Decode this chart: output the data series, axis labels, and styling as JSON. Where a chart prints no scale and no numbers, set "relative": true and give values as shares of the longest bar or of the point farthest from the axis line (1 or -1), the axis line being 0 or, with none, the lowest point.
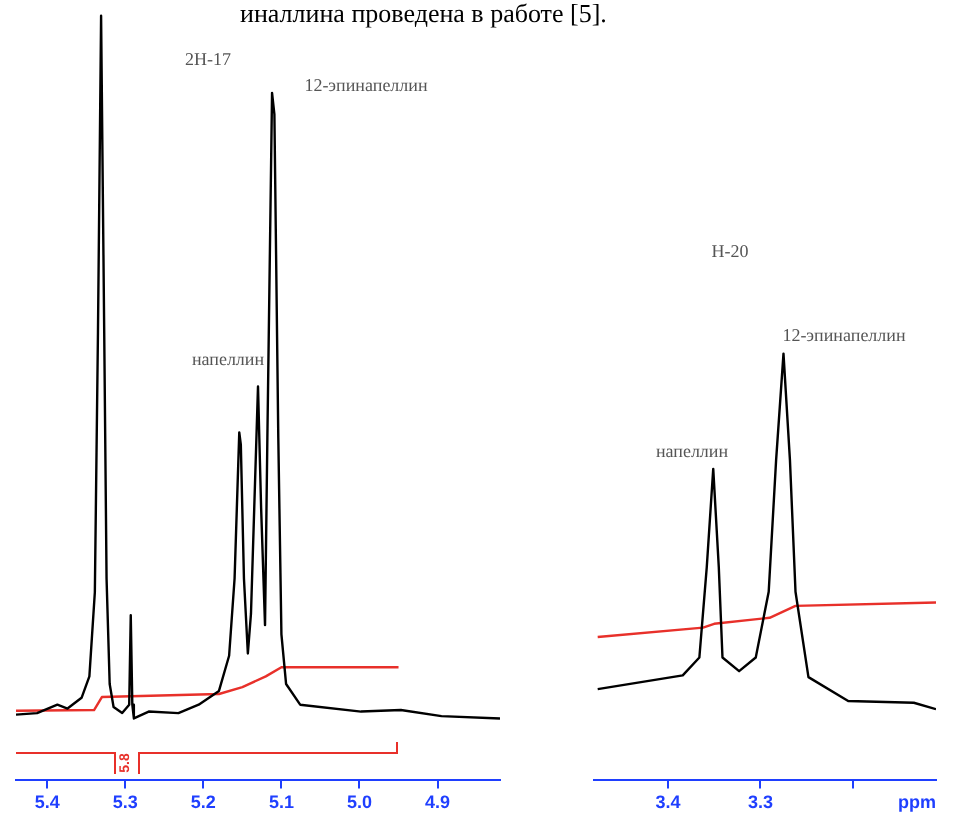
{
  "chart_data": [
    {
      "type": "line",
      "relative": true,
      "legend": false,
      "grid": false,
      "marker": "none",
      "xlim": [
        5.44,
        4.82
      ],
      "xticks": [
        5.4,
        5.3,
        5.2,
        5.1,
        {
          "value": 5,
          "label": "5.0"
        },
        4.9
      ],
      "series": [
        {
          "color": "#000000",
          "x": [
            5.44,
            5.413,
            5.387,
            5.374,
            5.356,
            5.346,
            5.339,
            5.335,
            5.331,
            5.327,
            5.324,
            5.32,
            5.315,
            5.304,
            5.295,
            5.293,
            5.291,
            5.289,
            5.27,
            5.232,
            5.206,
            5.18,
            5.167,
            5.16,
            5.154,
            5.152,
            5.148,
            5.143,
            5.139,
            5.13,
            5.126,
            5.121,
            5.118,
            5.112,
            5.109,
            5.104,
            5.1,
            5.094,
            5.076,
            4.998,
            4.947,
            4.895,
            4.82
          ],
          "values": [
            0.086,
            0.088,
            0.099,
            0.094,
            0.108,
            0.136,
            0.246,
            0.586,
            1,
            0.586,
            0.264,
            0.126,
            0.096,
            0.088,
            0.099,
            0.216,
            0.099,
            0.081,
            0.09,
            0.088,
            0.099,
            0.117,
            0.163,
            0.264,
            0.455,
            0.439,
            0.264,
            0.166,
            0.218,
            0.515,
            0.356,
            0.203,
            0.448,
            0.899,
            0.871,
            0.448,
            0.191,
            0.126,
            0.099,
            0.09,
            0.092,
            0.084,
            0.081
          ]
        },
        {
          "color": "#e8302a",
          "x": [
            5.44,
            5.34,
            5.33,
            5.18,
            5.15,
            5.12,
            5.1,
            4.95
          ],
          "values": [
            0.091,
            0.092,
            0.109,
            0.113,
            0.122,
            0.136,
            0.148,
            0.148
          ]
        }
      ],
      "annotations": [
        "иналлина проведена в работе [5].",
        "2H-17",
        "12-эпинапеллин",
        "напеллин",
        "5.8"
      ]
    },
    {
      "type": "line",
      "relative": true,
      "legend": false,
      "grid": false,
      "marker": "none",
      "xlabel": "ppm",
      "xlim": [
        3.48,
        3.11
      ],
      "xticks": [
        3.4,
        3.3,
        {
          "value": 3.2,
          "label": null
        }
      ],
      "series": [
        {
          "color": "#000000",
          "x": [
            3.476,
            3.384,
            3.366,
            3.358,
            3.351,
            3.345,
            3.341,
            3.323,
            3.305,
            3.291,
            3.283,
            3.275,
            3.268,
            3.262,
            3.248,
            3.205,
            3.134,
            3.11
          ],
          "values": [
            0.214,
            0.246,
            0.288,
            0.5,
            0.73,
            0.5,
            0.288,
            0.256,
            0.288,
            0.442,
            0.75,
            1,
            0.75,
            0.442,
            0.242,
            0.186,
            0.182,
            0.167
          ]
        },
        {
          "color": "#e8302a",
          "x": [
            3.476,
            3.362,
            3.35,
            3.29,
            3.262,
            3.11
          ],
          "values": [
            0.336,
            0.358,
            0.367,
            0.381,
            0.409,
            0.417
          ]
        }
      ],
      "annotations": [
        "H-20",
        "12-эпинапеллин",
        "напеллин"
      ]
    }
  ]
}
